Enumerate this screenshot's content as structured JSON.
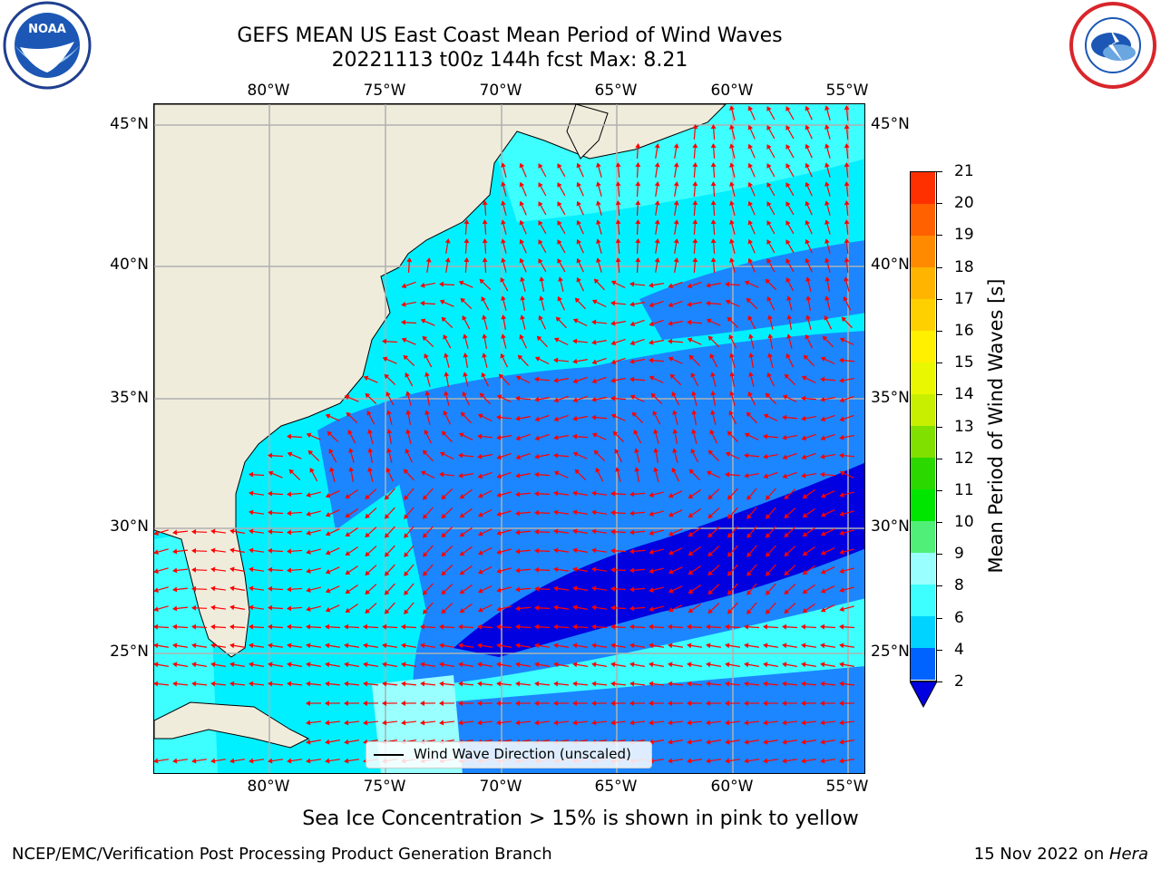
{
  "title": {
    "line1": "GEFS MEAN US East Coast Mean Period of Wind Waves",
    "line2": "20221113 t00z 144h fcst   Max: 8.21"
  },
  "logos": {
    "left": {
      "text": "NOAA",
      "icon": "noaa-logo-icon"
    },
    "right": {
      "icon": "national-weather-service-logo-icon"
    }
  },
  "map": {
    "lon_labels": [
      "80°W",
      "75°W",
      "70°W",
      "65°W",
      "60°W",
      "55°W"
    ],
    "lat_labels": [
      "45°N",
      "40°N",
      "35°N",
      "30°N",
      "25°N"
    ],
    "gridlines": true,
    "colors": {
      "land": "#efecdc",
      "coast": "#000000",
      "arrow": "#ff0000",
      "grid": "#b0b0b0"
    },
    "legend": "Wind Wave Direction (unscaled)"
  },
  "colorbar": {
    "label": "Mean Period of Wind Waves [s]",
    "ticks": [
      "2",
      "4",
      "6",
      "8",
      "9",
      "10",
      "11",
      "12",
      "13",
      "14",
      "15",
      "16",
      "17",
      "18",
      "19",
      "20",
      "21"
    ],
    "colors": [
      "#0063ff",
      "#00d3ff",
      "#3dffff",
      "#9affff",
      "#50f078",
      "#00e600",
      "#2bd800",
      "#80e000",
      "#c8ef00",
      "#e9f800",
      "#fff000",
      "#ffd000",
      "#ffb400",
      "#ff8a00",
      "#ff6000",
      "#ff3000",
      "#ff0000"
    ],
    "under_color": "#0000e0"
  },
  "note": "Sea Ice Concentration > 15% is shown in pink to yellow",
  "footer": {
    "left": "NCEP/EMC/Verification Post Processing Product Generation Branch",
    "right_date": "15 Nov 2022 on ",
    "right_host": "Hera"
  }
}
